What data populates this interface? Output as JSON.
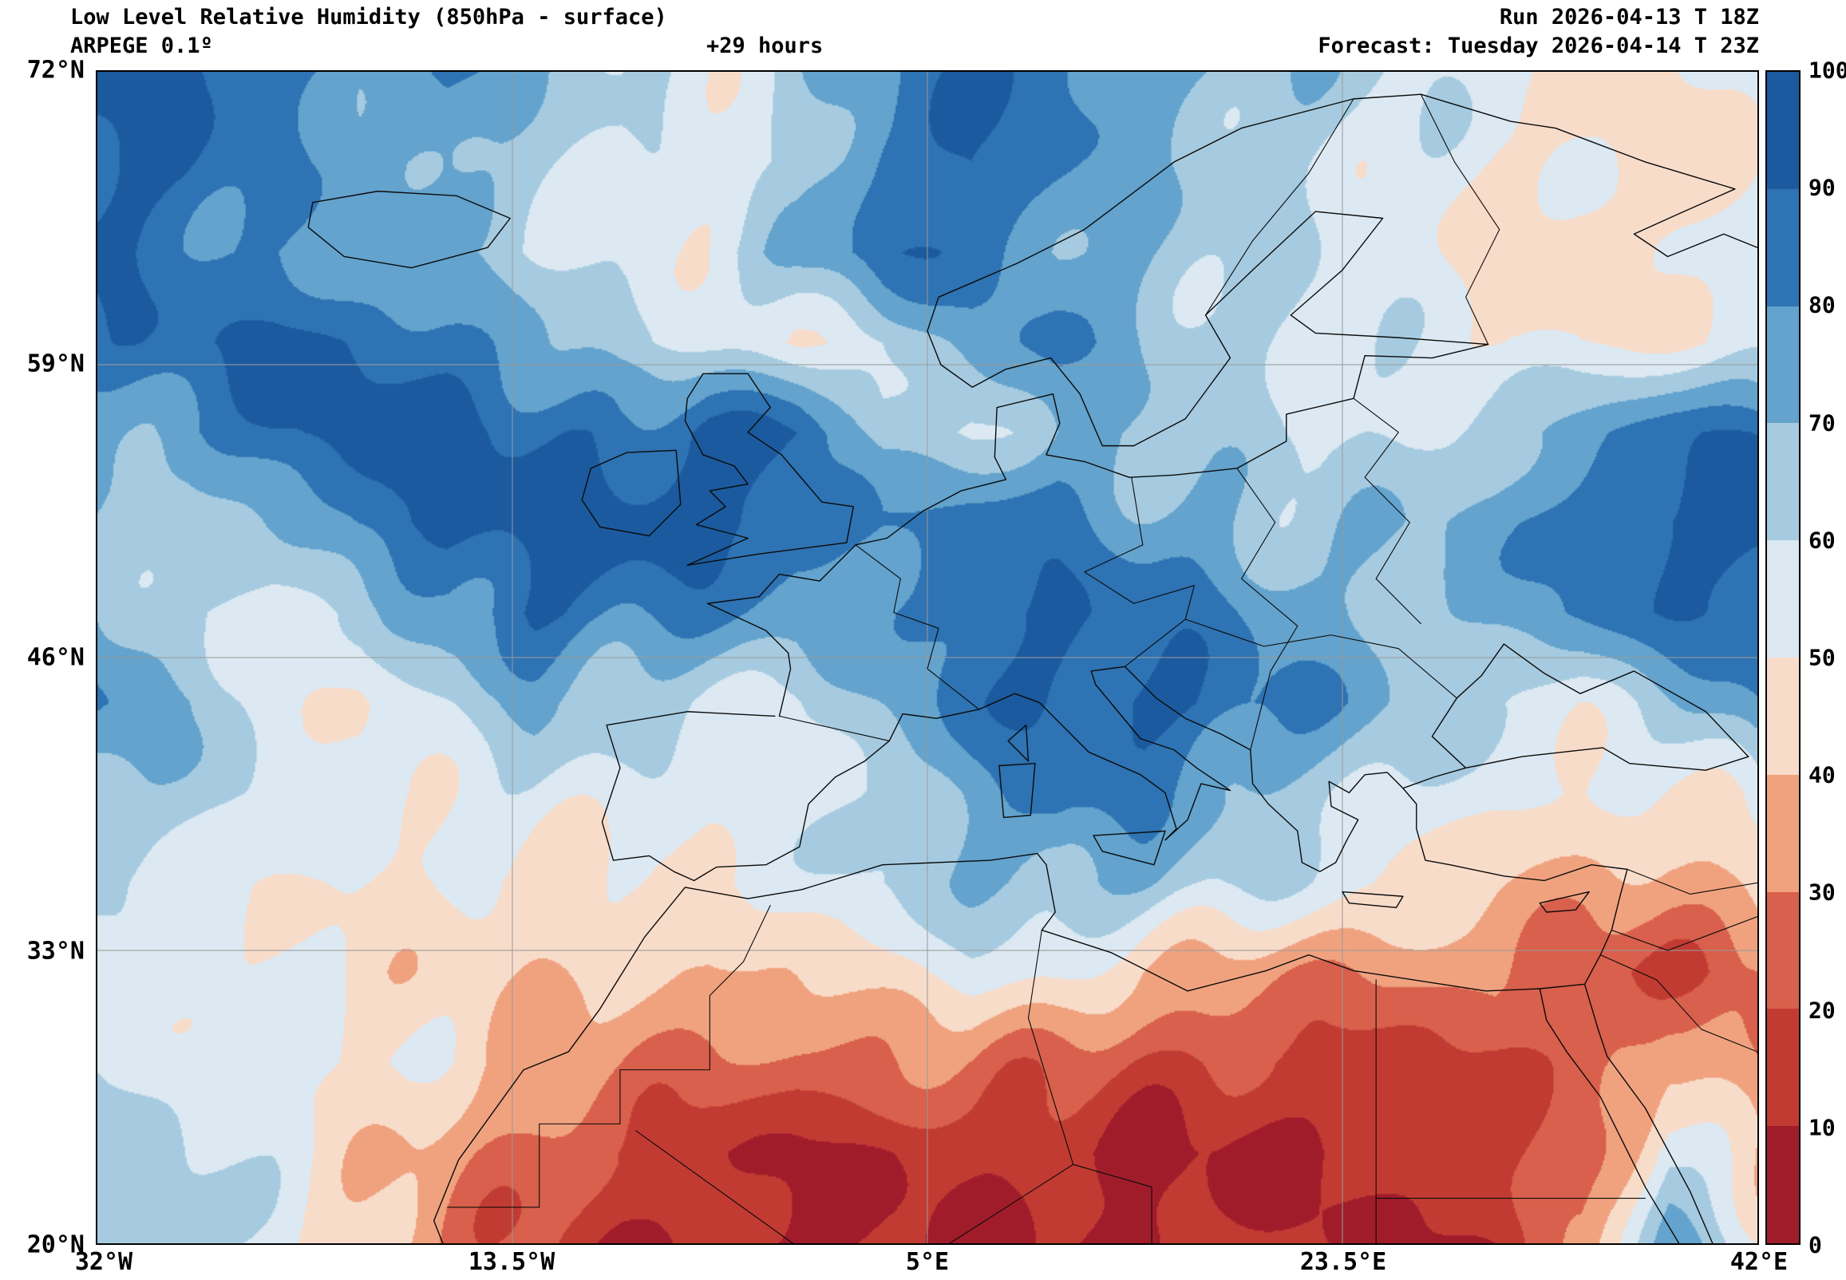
{
  "header": {
    "title": "Low Level Relative Humidity (850hPa - surface)",
    "model": "ARPEGE 0.1º",
    "lead_time": "+29 hours",
    "run": "Run 2026-04-13 T 18Z",
    "forecast": "Forecast: Tuesday 2026-04-14 T 23Z"
  },
  "map": {
    "y_ticks": [
      "72°N",
      "59°N",
      "46°N",
      "33°N",
      "20°N"
    ],
    "x_ticks": [
      "32°W",
      "13.5°W",
      "5°E",
      "23.5°E",
      "42°E"
    ],
    "grid_lats": [
      59,
      46,
      33
    ],
    "grid_lons": [
      -13.5,
      5,
      23.5
    ]
  },
  "colorbar": {
    "tick_labels": [
      "100",
      "90",
      "80",
      "70",
      "60",
      "50",
      "40",
      "30",
      "20",
      "10",
      "0"
    ],
    "colors_low_to_high": [
      "#a11c2b",
      "#c23b33",
      "#d8604c",
      "#f0a27f",
      "#f8dcca",
      "#dce9f2",
      "#a6cbe0",
      "#63a3cd",
      "#2e73b3",
      "#1b5a9e"
    ]
  },
  "chart_data": {
    "type": "heatmap",
    "variable": "low level relative humidity (%)",
    "units": "%",
    "levels": [
      0,
      10,
      20,
      30,
      40,
      50,
      60,
      70,
      80,
      90,
      100
    ],
    "lon_min": -32,
    "lon_max": 42,
    "lat_min": 20,
    "lat_max": 72,
    "lat_rows_top_to_bottom": [
      72,
      68,
      64,
      60,
      56,
      52,
      48,
      44,
      40,
      36,
      32,
      28,
      24,
      20
    ],
    "lon_cols_west_to_east": [
      -32,
      -28.1,
      -24.2,
      -20.3,
      -16.4,
      -12.5,
      -8.7,
      -4.8,
      -0.9,
      3.0,
      6.9,
      10.8,
      14.7,
      18.6,
      22.5,
      26.3,
      30.2,
      34.1,
      38.1,
      42
    ],
    "grid": [
      [
        95,
        92,
        85,
        75,
        80,
        70,
        60,
        55,
        65,
        80,
        90,
        85,
        75,
        70,
        65,
        60,
        55,
        52,
        48,
        52
      ],
      [
        92,
        90,
        80,
        70,
        75,
        65,
        55,
        52,
        60,
        85,
        92,
        80,
        70,
        65,
        60,
        55,
        50,
        48,
        45,
        50
      ],
      [
        88,
        85,
        80,
        72,
        68,
        60,
        55,
        58,
        70,
        88,
        85,
        75,
        70,
        62,
        58,
        52,
        48,
        45,
        48,
        52
      ],
      [
        85,
        88,
        92,
        90,
        85,
        75,
        60,
        55,
        52,
        60,
        75,
        80,
        70,
        62,
        58,
        55,
        50,
        48,
        52,
        55
      ],
      [
        70,
        80,
        90,
        95,
        95,
        90,
        85,
        95,
        90,
        62,
        60,
        72,
        68,
        62,
        58,
        60,
        65,
        75,
        85,
        90
      ],
      [
        65,
        60,
        70,
        85,
        95,
        92,
        95,
        95,
        88,
        80,
        85,
        82,
        75,
        70,
        65,
        68,
        75,
        85,
        92,
        95
      ],
      [
        75,
        60,
        52,
        60,
        80,
        90,
        85,
        80,
        75,
        78,
        88,
        92,
        85,
        80,
        72,
        68,
        72,
        80,
        88,
        92
      ],
      [
        80,
        70,
        55,
        50,
        60,
        70,
        65,
        60,
        58,
        70,
        85,
        90,
        92,
        88,
        78,
        68,
        60,
        55,
        65,
        80
      ],
      [
        70,
        65,
        58,
        52,
        55,
        58,
        55,
        50,
        55,
        62,
        75,
        85,
        80,
        72,
        65,
        58,
        52,
        48,
        50,
        55
      ],
      [
        60,
        55,
        52,
        50,
        48,
        45,
        48,
        52,
        55,
        60,
        68,
        72,
        70,
        62,
        55,
        48,
        42,
        38,
        35,
        38
      ],
      [
        55,
        52,
        50,
        48,
        45,
        42,
        40,
        38,
        42,
        48,
        55,
        50,
        40,
        35,
        32,
        30,
        32,
        20,
        22,
        25
      ],
      [
        58,
        55,
        52,
        50,
        45,
        38,
        32,
        28,
        25,
        28,
        30,
        25,
        20,
        18,
        15,
        18,
        20,
        22,
        35,
        30
      ],
      [
        65,
        60,
        55,
        45,
        35,
        25,
        18,
        12,
        10,
        10,
        12,
        10,
        8,
        8,
        10,
        12,
        15,
        25,
        60,
        40
      ],
      [
        70,
        65,
        55,
        40,
        30,
        20,
        12,
        8,
        8,
        10,
        8,
        8,
        8,
        10,
        12,
        10,
        12,
        30,
        75,
        55
      ]
    ]
  }
}
